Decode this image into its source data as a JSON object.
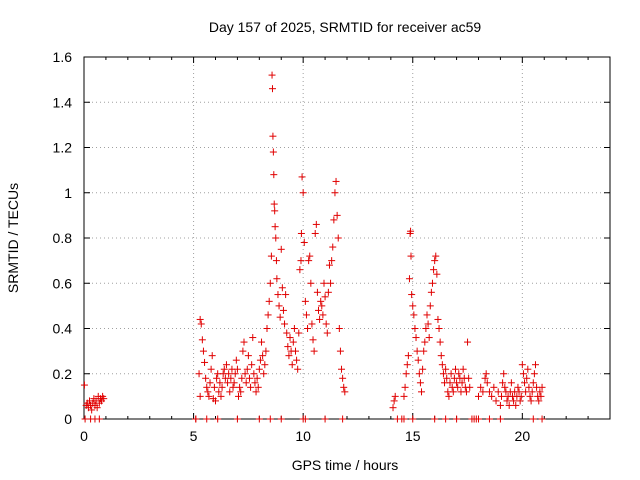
{
  "chart_data": {
    "type": "scatter",
    "title": "Day 157 of 2025, SRMTID for receiver ac59",
    "xlabel": "GPS time / hours",
    "ylabel": "SRMTID / TECUs",
    "xlim": [
      0,
      24
    ],
    "ylim": [
      0,
      1.6
    ],
    "xticks": [
      0,
      5,
      10,
      15,
      20
    ],
    "yticks": [
      0,
      0.2,
      0.4,
      0.6,
      0.8,
      1,
      1.2,
      1.4,
      1.6
    ],
    "xtick_labels": [
      "0",
      "5",
      "10",
      "15",
      "20"
    ],
    "ytick_labels": [
      "0",
      "0.2",
      "0.4",
      "0.6",
      "0.8",
      "1",
      "1.2",
      "1.4",
      "1.6"
    ],
    "grid": true,
    "marker": "+",
    "color": "#e00000",
    "series": [
      {
        "name": "SRMTID",
        "points": [
          [
            0.02,
            0.15
          ],
          [
            0.05,
            0.0
          ],
          [
            0.1,
            0.06
          ],
          [
            0.15,
            0.07
          ],
          [
            0.2,
            0.05
          ],
          [
            0.25,
            0.08
          ],
          [
            0.3,
            0.06
          ],
          [
            0.35,
            0.04
          ],
          [
            0.4,
            0.07
          ],
          [
            0.45,
            0.09
          ],
          [
            0.5,
            0.06
          ],
          [
            0.55,
            0.08
          ],
          [
            0.6,
            0.05
          ],
          [
            0.65,
            0.1
          ],
          [
            0.7,
            0.07
          ],
          [
            0.75,
            0.09
          ],
          [
            0.8,
            0.08
          ],
          [
            0.85,
            0.1
          ],
          [
            0.9,
            0.09
          ],
          [
            0.3,
            0.0
          ],
          [
            0.5,
            0.0
          ],
          [
            0.7,
            0.0
          ],
          [
            5.1,
            0.0
          ],
          [
            5.25,
            0.2
          ],
          [
            5.3,
            0.44
          ],
          [
            5.35,
            0.42
          ],
          [
            5.4,
            0.35
          ],
          [
            5.45,
            0.3
          ],
          [
            5.5,
            0.25
          ],
          [
            5.55,
            0.18
          ],
          [
            5.6,
            0.14
          ],
          [
            5.65,
            0.12
          ],
          [
            5.7,
            0.1
          ],
          [
            5.75,
            0.16
          ],
          [
            5.8,
            0.22
          ],
          [
            5.85,
            0.28
          ],
          [
            5.9,
            0.09
          ],
          [
            5.95,
            0.14
          ],
          [
            6.0,
            0.08
          ],
          [
            6.05,
            0.18
          ],
          [
            6.1,
            0.2
          ],
          [
            6.15,
            0.12
          ],
          [
            6.2,
            0.16
          ],
          [
            6.25,
            0.1
          ],
          [
            6.3,
            0.14
          ],
          [
            6.35,
            0.2
          ],
          [
            6.4,
            0.22
          ],
          [
            6.45,
            0.18
          ],
          [
            6.5,
            0.24
          ],
          [
            6.55,
            0.16
          ],
          [
            6.6,
            0.2
          ],
          [
            6.65,
            0.12
          ],
          [
            6.7,
            0.18
          ],
          [
            6.75,
            0.22
          ],
          [
            6.8,
            0.14
          ],
          [
            6.85,
            0.16
          ],
          [
            6.9,
            0.2
          ],
          [
            6.95,
            0.26
          ],
          [
            7.0,
            0.22
          ],
          [
            7.05,
            0.1
          ],
          [
            7.1,
            0.14
          ],
          [
            7.15,
            0.12
          ],
          [
            7.2,
            0.18
          ],
          [
            7.25,
            0.3
          ],
          [
            7.3,
            0.34
          ],
          [
            7.35,
            0.2
          ],
          [
            7.4,
            0.16
          ],
          [
            7.45,
            0.22
          ],
          [
            7.5,
            0.28
          ],
          [
            7.55,
            0.18
          ],
          [
            7.6,
            0.14
          ],
          [
            7.65,
            0.24
          ],
          [
            7.7,
            0.36
          ],
          [
            7.75,
            0.2
          ],
          [
            7.8,
            0.16
          ],
          [
            7.85,
            0.12
          ],
          [
            7.9,
            0.18
          ],
          [
            7.95,
            0.14
          ],
          [
            8.0,
            0.22
          ],
          [
            8.05,
            0.26
          ],
          [
            8.1,
            0.34
          ],
          [
            8.15,
            0.28
          ],
          [
            8.2,
            0.2
          ],
          [
            8.25,
            0.24
          ],
          [
            8.3,
            0.3
          ],
          [
            8.35,
            0.4
          ],
          [
            8.4,
            0.46
          ],
          [
            8.45,
            0.52
          ],
          [
            8.5,
            0.6
          ],
          [
            8.55,
            0.72
          ],
          [
            8.58,
            1.52
          ],
          [
            8.6,
            1.46
          ],
          [
            8.62,
            1.25
          ],
          [
            8.64,
            1.18
          ],
          [
            8.66,
            1.08
          ],
          [
            8.68,
            0.95
          ],
          [
            8.7,
            0.92
          ],
          [
            8.72,
            0.85
          ],
          [
            8.75,
            0.8
          ],
          [
            8.78,
            0.7
          ],
          [
            8.8,
            0.62
          ],
          [
            8.85,
            0.55
          ],
          [
            8.9,
            0.5
          ],
          [
            8.95,
            0.45
          ],
          [
            9.0,
            0.75
          ],
          [
            9.05,
            0.58
          ],
          [
            9.1,
            0.48
          ],
          [
            9.15,
            0.42
          ],
          [
            9.2,
            0.55
          ],
          [
            9.25,
            0.38
          ],
          [
            9.3,
            0.32
          ],
          [
            9.35,
            0.28
          ],
          [
            9.4,
            0.36
          ],
          [
            9.45,
            0.3
          ],
          [
            9.5,
            0.24
          ],
          [
            9.55,
            0.34
          ],
          [
            9.6,
            0.4
          ],
          [
            9.65,
            0.3
          ],
          [
            9.7,
            0.26
          ],
          [
            9.75,
            0.22
          ],
          [
            9.8,
            0.38
          ],
          [
            9.85,
            0.66
          ],
          [
            9.9,
            0.7
          ],
          [
            9.92,
            0.82
          ],
          [
            9.95,
            1.07
          ],
          [
            10.0,
            1.0
          ],
          [
            10.05,
            0.78
          ],
          [
            10.1,
            0.52
          ],
          [
            10.15,
            0.46
          ],
          [
            10.2,
            0.4
          ],
          [
            10.25,
            0.7
          ],
          [
            10.3,
            0.72
          ],
          [
            10.35,
            0.6
          ],
          [
            10.4,
            0.42
          ],
          [
            10.45,
            0.35
          ],
          [
            10.5,
            0.3
          ],
          [
            10.55,
            0.82
          ],
          [
            10.6,
            0.86
          ],
          [
            10.65,
            0.56
          ],
          [
            10.7,
            0.48
          ],
          [
            10.75,
            0.44
          ],
          [
            10.8,
            0.52
          ],
          [
            10.85,
            0.5
          ],
          [
            10.9,
            0.46
          ],
          [
            10.95,
            0.6
          ],
          [
            11.0,
            0.54
          ],
          [
            11.05,
            0.42
          ],
          [
            11.1,
            0.38
          ],
          [
            11.15,
            0.56
          ],
          [
            11.2,
            0.68
          ],
          [
            11.25,
            0.6
          ],
          [
            11.3,
            0.7
          ],
          [
            11.35,
            0.76
          ],
          [
            11.4,
            0.88
          ],
          [
            11.45,
            1.0
          ],
          [
            11.5,
            1.05
          ],
          [
            11.55,
            0.9
          ],
          [
            11.6,
            0.8
          ],
          [
            11.65,
            0.4
          ],
          [
            11.7,
            0.3
          ],
          [
            11.75,
            0.22
          ],
          [
            11.8,
            0.18
          ],
          [
            11.85,
            0.14
          ],
          [
            11.9,
            0.12
          ],
          [
            5.1,
            0.0
          ],
          [
            5.3,
            0.1
          ],
          [
            5.6,
            0.0
          ],
          [
            6.1,
            0.0
          ],
          [
            7.0,
            0.0
          ],
          [
            8.0,
            0.0
          ],
          [
            8.5,
            0.0
          ],
          [
            9.0,
            0.0
          ],
          [
            10.0,
            0.0
          ],
          [
            10.1,
            0.0
          ],
          [
            11.0,
            0.0
          ],
          [
            11.8,
            0.0
          ],
          [
            14.1,
            0.05
          ],
          [
            14.15,
            0.08
          ],
          [
            14.2,
            0.1
          ],
          [
            14.3,
            0.0
          ],
          [
            14.5,
            0.0
          ],
          [
            14.6,
            0.1
          ],
          [
            14.65,
            0.14
          ],
          [
            14.7,
            0.2
          ],
          [
            14.75,
            0.24
          ],
          [
            14.8,
            0.28
          ],
          [
            14.85,
            0.62
          ],
          [
            14.88,
            0.82
          ],
          [
            14.9,
            0.83
          ],
          [
            14.92,
            0.72
          ],
          [
            14.95,
            0.55
          ],
          [
            15.0,
            0.5
          ],
          [
            15.05,
            0.46
          ],
          [
            15.1,
            0.4
          ],
          [
            15.15,
            0.36
          ],
          [
            15.2,
            0.3
          ],
          [
            15.25,
            0.26
          ],
          [
            15.3,
            0.2
          ],
          [
            15.35,
            0.16
          ],
          [
            15.4,
            0.12
          ],
          [
            15.45,
            0.22
          ],
          [
            15.5,
            0.3
          ],
          [
            15.55,
            0.34
          ],
          [
            15.6,
            0.4
          ],
          [
            15.65,
            0.46
          ],
          [
            15.7,
            0.42
          ],
          [
            15.75,
            0.36
          ],
          [
            15.8,
            0.5
          ],
          [
            15.85,
            0.56
          ],
          [
            15.9,
            0.6
          ],
          [
            15.95,
            0.66
          ],
          [
            16.0,
            0.7
          ],
          [
            16.05,
            0.72
          ],
          [
            16.1,
            0.64
          ],
          [
            16.15,
            0.44
          ],
          [
            16.2,
            0.4
          ],
          [
            16.25,
            0.34
          ],
          [
            16.3,
            0.28
          ],
          [
            16.35,
            0.24
          ],
          [
            16.4,
            0.2
          ],
          [
            16.45,
            0.16
          ],
          [
            16.5,
            0.22
          ],
          [
            16.55,
            0.18
          ],
          [
            16.6,
            0.12
          ],
          [
            16.65,
            0.1
          ],
          [
            16.7,
            0.16
          ],
          [
            16.75,
            0.2
          ],
          [
            16.8,
            0.14
          ],
          [
            16.85,
            0.12
          ],
          [
            16.9,
            0.18
          ],
          [
            16.95,
            0.22
          ],
          [
            17.0,
            0.16
          ],
          [
            17.05,
            0.14
          ],
          [
            17.1,
            0.2
          ],
          [
            17.15,
            0.18
          ],
          [
            17.2,
            0.12
          ],
          [
            17.25,
            0.16
          ],
          [
            17.3,
            0.22
          ],
          [
            17.35,
            0.18
          ],
          [
            17.4,
            0.14
          ],
          [
            17.45,
            0.12
          ],
          [
            17.5,
            0.34
          ],
          [
            17.55,
            0.18
          ],
          [
            17.6,
            0.14
          ],
          [
            14.6,
            0.0
          ],
          [
            15.0,
            0.0
          ],
          [
            16.0,
            0.0
          ],
          [
            16.5,
            0.0
          ],
          [
            17.0,
            0.0
          ],
          [
            17.7,
            0.0
          ],
          [
            17.8,
            0.0
          ],
          [
            17.9,
            0.0
          ],
          [
            18.0,
            0.0
          ],
          [
            18.5,
            0.0
          ],
          [
            18.0,
            0.1
          ],
          [
            18.1,
            0.14
          ],
          [
            18.2,
            0.12
          ],
          [
            18.3,
            0.18
          ],
          [
            18.35,
            0.2
          ],
          [
            18.4,
            0.16
          ],
          [
            18.5,
            0.12
          ],
          [
            18.6,
            0.1
          ],
          [
            18.7,
            0.14
          ],
          [
            18.8,
            0.08
          ],
          [
            18.9,
            0.12
          ],
          [
            19.0,
            0.06
          ],
          [
            19.05,
            0.1
          ],
          [
            19.1,
            0.16
          ],
          [
            19.15,
            0.2
          ],
          [
            19.2,
            0.14
          ],
          [
            19.25,
            0.12
          ],
          [
            19.3,
            0.08
          ],
          [
            19.35,
            0.1
          ],
          [
            19.4,
            0.06
          ],
          [
            19.45,
            0.12
          ],
          [
            19.5,
            0.16
          ],
          [
            19.55,
            0.1
          ],
          [
            19.6,
            0.08
          ],
          [
            19.65,
            0.12
          ],
          [
            19.7,
            0.06
          ],
          [
            19.75,
            0.1
          ],
          [
            19.8,
            0.14
          ],
          [
            19.85,
            0.12
          ],
          [
            19.9,
            0.08
          ],
          [
            19.95,
            0.1
          ],
          [
            20.0,
            0.24
          ],
          [
            20.05,
            0.2
          ],
          [
            20.1,
            0.16
          ],
          [
            20.15,
            0.12
          ],
          [
            20.2,
            0.18
          ],
          [
            20.25,
            0.22
          ],
          [
            20.3,
            0.14
          ],
          [
            20.35,
            0.1
          ],
          [
            20.4,
            0.08
          ],
          [
            20.45,
            0.12
          ],
          [
            20.5,
            0.16
          ],
          [
            20.55,
            0.2
          ],
          [
            20.6,
            0.24
          ],
          [
            20.65,
            0.14
          ],
          [
            20.7,
            0.1
          ],
          [
            20.75,
            0.08
          ],
          [
            20.8,
            0.12
          ],
          [
            20.85,
            0.1
          ],
          [
            20.9,
            0.14
          ],
          [
            19.0,
            0.0
          ],
          [
            20.5,
            0.0
          ],
          [
            20.9,
            0.0
          ]
        ]
      }
    ]
  }
}
